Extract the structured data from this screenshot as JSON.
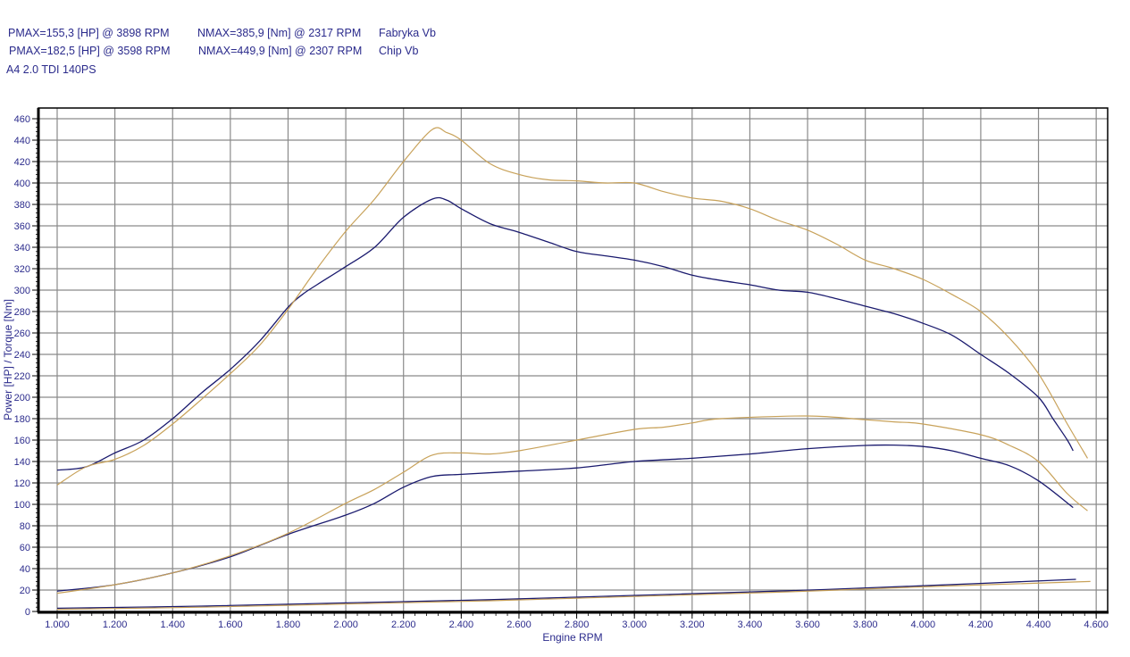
{
  "header": {
    "line1": {
      "pmax": "PMAX=155,3 [HP] @ 3898 RPM",
      "nmax": "NMAX=385,9 [Nm] @ 2317 RPM",
      "name": "Fabryka Vb"
    },
    "line2": {
      "pmax": "PMAX=182,5 [HP] @ 3598 RPM",
      "nmax": "NMAX=449,9 [Nm] @ 2307 RPM",
      "name": "Chip Vb"
    },
    "vehicle": "A4 2.0 TDI 140PS"
  },
  "colors": {
    "stock": "#1a1a6e",
    "chip": "#c8a25a",
    "grid": "#8a8a8a",
    "text": "#2b2b8c"
  },
  "chart_data": {
    "type": "line",
    "title": "A4 2.0 TDI 140PS",
    "xlabel": "Engine RPM",
    "ylabel": "Power [HP] / Torque [Nm]",
    "xlim": [
      940,
      4640
    ],
    "ylim": [
      0,
      460
    ],
    "xticks": [
      1000,
      1200,
      1400,
      1600,
      1800,
      2000,
      2200,
      2400,
      2600,
      2800,
      3000,
      3200,
      3400,
      3600,
      3800,
      4000,
      4200,
      4400,
      4600
    ],
    "xtick_labels": [
      "1.000",
      "1.200",
      "1.400",
      "1.600",
      "1.800",
      "2.000",
      "2.200",
      "2.400",
      "2.600",
      "2.800",
      "3.000",
      "3.200",
      "3.400",
      "3.600",
      "3.800",
      "4.000",
      "4.200",
      "4.400",
      "4.600"
    ],
    "yticks": [
      0,
      20,
      40,
      60,
      80,
      100,
      120,
      140,
      160,
      180,
      200,
      220,
      240,
      260,
      280,
      300,
      320,
      340,
      360,
      380,
      400,
      420,
      440,
      460
    ],
    "grid": true,
    "series": [
      {
        "name": "Torque Fabryka Vb [Nm]",
        "color": "#1a1a6e",
        "x": [
          1000,
          1100,
          1200,
          1300,
          1400,
          1500,
          1600,
          1700,
          1800,
          1850,
          1900,
          2000,
          2100,
          2200,
          2300,
          2350,
          2400,
          2500,
          2600,
          2700,
          2800,
          2900,
          3000,
          3100,
          3200,
          3300,
          3400,
          3500,
          3600,
          3700,
          3800,
          3900,
          4000,
          4100,
          4200,
          4300,
          4400,
          4450,
          4500,
          4520
        ],
        "values": [
          132,
          135,
          148,
          160,
          180,
          204,
          226,
          252,
          284,
          296,
          305,
          322,
          340,
          368,
          385,
          384,
          376,
          362,
          354,
          345,
          336,
          332,
          328,
          322,
          314,
          309,
          305,
          300,
          298,
          292,
          285,
          278,
          269,
          258,
          240,
          222,
          200,
          180,
          160,
          150
        ]
      },
      {
        "name": "Torque Chip Vb [Nm]",
        "color": "#c8a25a",
        "x": [
          1000,
          1100,
          1200,
          1300,
          1400,
          1500,
          1600,
          1700,
          1800,
          1900,
          2000,
          2100,
          2200,
          2300,
          2350,
          2400,
          2500,
          2600,
          2700,
          2800,
          2900,
          3000,
          3100,
          3200,
          3300,
          3400,
          3500,
          3600,
          3700,
          3800,
          3900,
          4000,
          4100,
          4200,
          4300,
          4400,
          4500,
          4570
        ],
        "values": [
          118,
          135,
          142,
          155,
          175,
          198,
          222,
          248,
          282,
          320,
          355,
          385,
          420,
          450,
          447,
          440,
          418,
          408,
          403,
          402,
          400,
          400,
          392,
          386,
          383,
          376,
          365,
          356,
          343,
          328,
          320,
          310,
          296,
          280,
          255,
          222,
          175,
          143
        ]
      },
      {
        "name": "Power Fabryka Vb [HP]",
        "color": "#1a1a6e",
        "x": [
          1000,
          1200,
          1400,
          1600,
          1800,
          2000,
          2100,
          2200,
          2300,
          2400,
          2600,
          2800,
          3000,
          3200,
          3400,
          3600,
          3800,
          3900,
          4000,
          4100,
          4200,
          4300,
          4400,
          4520
        ],
        "values": [
          19,
          25,
          36,
          51,
          72,
          90,
          101,
          116,
          126,
          128,
          131,
          134,
          140,
          143,
          147,
          152,
          155,
          155.3,
          154,
          150,
          143,
          136,
          122,
          97
        ]
      },
      {
        "name": "Power Chip Vb [HP]",
        "color": "#c8a25a",
        "x": [
          1000,
          1200,
          1400,
          1600,
          1800,
          2000,
          2100,
          2200,
          2300,
          2400,
          2500,
          2600,
          2800,
          3000,
          3100,
          3200,
          3300,
          3600,
          3800,
          3900,
          4000,
          4200,
          4300,
          4400,
          4500,
          4570
        ],
        "values": [
          17,
          25,
          36,
          52,
          73,
          101,
          114,
          130,
          146,
          148,
          147,
          150,
          160,
          170,
          172,
          176,
          180,
          182.5,
          179,
          177,
          175,
          165,
          155,
          140,
          110,
          94
        ]
      },
      {
        "name": "Loss Fabryka Vb",
        "color": "#1a1a6e",
        "x": [
          1000,
          1500,
          2000,
          2500,
          3000,
          3500,
          4000,
          4530
        ],
        "values": [
          3,
          5,
          8,
          11,
          15,
          19,
          24,
          30
        ]
      },
      {
        "name": "Loss Chip Vb",
        "color": "#c8a25a",
        "x": [
          1000,
          1500,
          2000,
          2500,
          3000,
          3500,
          4000,
          4580
        ],
        "values": [
          2,
          4,
          7,
          10,
          14,
          18,
          23,
          28
        ]
      }
    ]
  }
}
